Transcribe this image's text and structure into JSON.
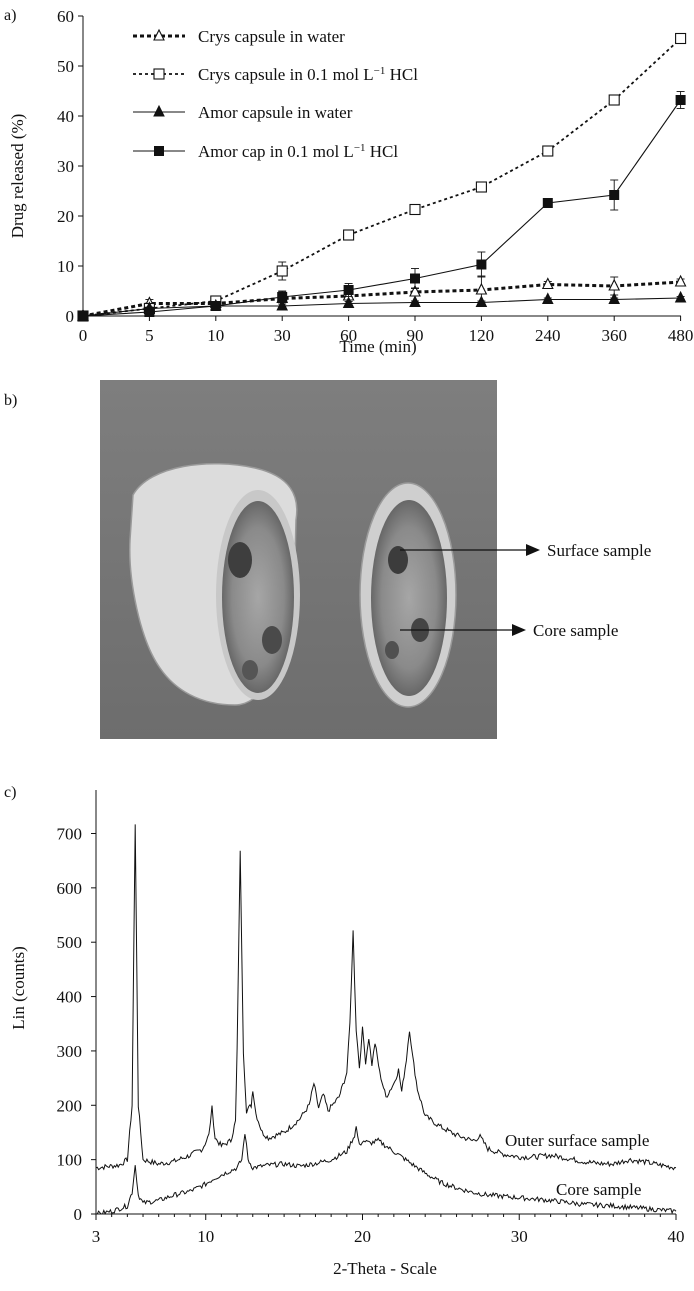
{
  "panels": {
    "a": {
      "label": "a)"
    },
    "b": {
      "label": "b)",
      "annotations": [
        "Surface sample",
        "Core sample"
      ]
    },
    "c": {
      "label": "c)"
    }
  },
  "chart_data": [
    {
      "panel": "a",
      "type": "line",
      "xlabel": "Time (min)",
      "ylabel": "Drug released (%)",
      "categories": [
        "0",
        "5",
        "10",
        "30",
        "60",
        "90",
        "120",
        "240",
        "360",
        "480"
      ],
      "ylim": [
        0,
        60
      ],
      "yticks": [
        0,
        10,
        20,
        30,
        40,
        50,
        60
      ],
      "legend_position": "top-left",
      "series": [
        {
          "name_parts": [
            "Crys capsule in water"
          ],
          "line": "dotted-heavy",
          "marker": "open-triangle",
          "values": [
            0,
            2.5,
            2.5,
            3.5,
            4.0,
            4.8,
            5.2,
            6.3,
            6.0,
            6.8
          ],
          "errors": [
            0,
            0.8,
            0.4,
            1.5,
            0.6,
            0.8,
            2.8,
            0.6,
            1.8,
            0.6
          ]
        },
        {
          "name_parts": [
            "Crys capsule in 0.1 mol L",
            "−1",
            " HCl"
          ],
          "line": "dotted",
          "marker": "open-square",
          "values": [
            0,
            1.5,
            3.0,
            9.0,
            16.2,
            21.3,
            25.8,
            33.0,
            43.2,
            55.5
          ],
          "errors": [
            0,
            0.5,
            0.6,
            1.8,
            0.8,
            0.6,
            0.7,
            0.9,
            0.7,
            0.8
          ]
        },
        {
          "name_parts": [
            "Amor capsule in water"
          ],
          "line": "solid",
          "marker": "filled-triangle",
          "values": [
            0,
            1.5,
            2.0,
            2.0,
            2.5,
            2.7,
            2.7,
            3.3,
            3.3,
            3.6
          ],
          "errors": [
            0,
            0.3,
            0.3,
            0.4,
            0.4,
            0.3,
            0.3,
            0.3,
            0.3,
            0.3
          ]
        },
        {
          "name_parts": [
            "Amor cap in 0.1 mol L",
            "−1",
            " HCl"
          ],
          "line": "solid",
          "marker": "filled-square",
          "values": [
            0,
            0.8,
            2.0,
            3.8,
            5.2,
            7.5,
            10.3,
            22.6,
            24.2,
            43.2
          ],
          "errors": [
            0,
            0.3,
            0.3,
            1.0,
            1.3,
            2.0,
            2.5,
            0.5,
            3.0,
            1.7
          ]
        }
      ]
    },
    {
      "panel": "c",
      "type": "line",
      "xlabel": "2-Theta - Scale",
      "ylabel": "Lin (counts)",
      "xlim": [
        3,
        40
      ],
      "xticks": [
        3,
        10,
        20,
        30,
        40
      ],
      "ylim": [
        0,
        780
      ],
      "yticks": [
        0,
        100,
        200,
        300,
        400,
        500,
        600,
        700
      ],
      "series": [
        {
          "name": "Outer surface sample",
          "points": [
            [
              3.0,
              85
            ],
            [
              4.5,
              90
            ],
            [
              5.0,
              100
            ],
            [
              5.3,
              200
            ],
            [
              5.5,
              715
            ],
            [
              5.7,
              200
            ],
            [
              6.0,
              100
            ],
            [
              7,
              92
            ],
            [
              8,
              97
            ],
            [
              9,
              108
            ],
            [
              9.8,
              120
            ],
            [
              10.2,
              145
            ],
            [
              10.4,
              195
            ],
            [
              10.6,
              140
            ],
            [
              11,
              125
            ],
            [
              11.6,
              135
            ],
            [
              11.9,
              170
            ],
            [
              12.0,
              300
            ],
            [
              12.2,
              665
            ],
            [
              12.4,
              300
            ],
            [
              12.6,
              190
            ],
            [
              12.9,
              200
            ],
            [
              13.0,
              230
            ],
            [
              13.2,
              185
            ],
            [
              13.6,
              150
            ],
            [
              14,
              140
            ],
            [
              15,
              150
            ],
            [
              16,
              175
            ],
            [
              16.6,
              200
            ],
            [
              16.9,
              240
            ],
            [
              17.2,
              195
            ],
            [
              17.5,
              220
            ],
            [
              17.8,
              190
            ],
            [
              18.5,
              215
            ],
            [
              19.0,
              260
            ],
            [
              19.2,
              350
            ],
            [
              19.4,
              520
            ],
            [
              19.6,
              340
            ],
            [
              19.8,
              270
            ],
            [
              20.0,
              340
            ],
            [
              20.2,
              280
            ],
            [
              20.4,
              325
            ],
            [
              20.6,
              275
            ],
            [
              20.8,
              315
            ],
            [
              21.1,
              260
            ],
            [
              21.5,
              215
            ],
            [
              22.0,
              240
            ],
            [
              22.3,
              265
            ],
            [
              22.5,
              225
            ],
            [
              22.8,
              285
            ],
            [
              23.0,
              340
            ],
            [
              23.2,
              290
            ],
            [
              23.5,
              230
            ],
            [
              24,
              180
            ],
            [
              25,
              160
            ],
            [
              26,
              145
            ],
            [
              27,
              135
            ],
            [
              27.5,
              142
            ],
            [
              28,
              120
            ],
            [
              29,
              110
            ],
            [
              30,
              105
            ],
            [
              31,
              105
            ],
            [
              32,
              108
            ],
            [
              33,
              103
            ],
            [
              34,
              97
            ],
            [
              35,
              93
            ],
            [
              36,
              92
            ],
            [
              37,
              100
            ],
            [
              38,
              96
            ],
            [
              39,
              90
            ],
            [
              40,
              85
            ]
          ]
        },
        {
          "name": "Core sample",
          "points": [
            [
              3.0,
              0
            ],
            [
              4,
              5
            ],
            [
              5.0,
              15
            ],
            [
              5.3,
              40
            ],
            [
              5.5,
              90
            ],
            [
              5.7,
              35
            ],
            [
              6,
              20
            ],
            [
              7,
              25
            ],
            [
              8,
              35
            ],
            [
              9,
              42
            ],
            [
              10,
              55
            ],
            [
              10.5,
              65
            ],
            [
              11,
              72
            ],
            [
              12,
              85
            ],
            [
              12.3,
              100
            ],
            [
              12.5,
              150
            ],
            [
              12.7,
              100
            ],
            [
              13,
              85
            ],
            [
              14,
              90
            ],
            [
              15,
              92
            ],
            [
              16,
              88
            ],
            [
              17,
              93
            ],
            [
              18,
              100
            ],
            [
              19,
              115
            ],
            [
              19.5,
              145
            ],
            [
              19.6,
              160
            ],
            [
              19.8,
              125
            ],
            [
              20,
              135
            ],
            [
              20.5,
              130
            ],
            [
              21,
              135
            ],
            [
              22,
              115
            ],
            [
              23,
              95
            ],
            [
              24,
              75
            ],
            [
              25,
              58
            ],
            [
              26,
              48
            ],
            [
              27,
              40
            ],
            [
              28,
              35
            ],
            [
              30,
              30
            ],
            [
              32,
              25
            ],
            [
              34,
              18
            ],
            [
              36,
              15
            ],
            [
              38,
              10
            ],
            [
              40,
              5
            ]
          ]
        }
      ]
    }
  ]
}
